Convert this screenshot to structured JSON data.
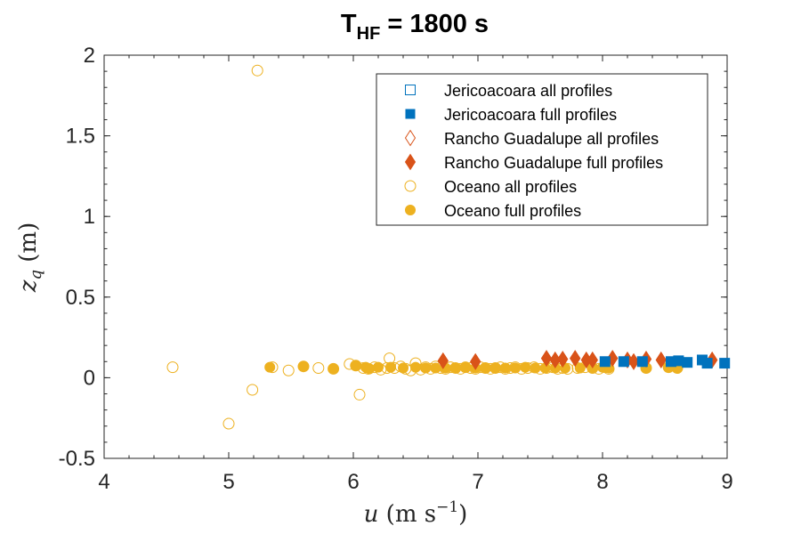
{
  "chart_data": {
    "type": "scatter",
    "title": {
      "main": "T",
      "sub": "HF",
      "rest": " = 1800 s"
    },
    "xlabel": {
      "var": "u",
      "unit_open": " (m s",
      "exp": "−1",
      "unit_close": ")"
    },
    "ylabel": {
      "var": "z",
      "sub": "q",
      "unit": " (m)"
    },
    "xlim": [
      4,
      9
    ],
    "ylim": [
      -0.5,
      2
    ],
    "xticks": [
      4,
      5,
      6,
      7,
      8,
      9
    ],
    "yticks": [
      -0.5,
      0,
      0.5,
      1,
      1.5,
      2
    ],
    "xtick_labels": [
      "4",
      "5",
      "6",
      "7",
      "8",
      "9"
    ],
    "ytick_labels": [
      "-0.5",
      "0",
      "0.5",
      "1",
      "1.5",
      "2"
    ],
    "legend_position": "top-right",
    "colors": {
      "jericoacoara": "#0072BD",
      "rancho": "#D95319",
      "oceano": "#EDB120"
    },
    "series": [
      {
        "name": "Jericoacoara all profiles",
        "marker": "square",
        "filled": false,
        "color": "#0072BD",
        "points": [
          [
            8.02,
            0.1
          ],
          [
            8.17,
            0.1
          ],
          [
            8.32,
            0.1
          ],
          [
            8.55,
            0.1
          ],
          [
            8.61,
            0.105
          ],
          [
            8.68,
            0.095
          ],
          [
            8.8,
            0.11
          ],
          [
            8.84,
            0.09
          ],
          [
            8.98,
            0.09
          ]
        ]
      },
      {
        "name": "Jericoacoara full profiles",
        "marker": "square",
        "filled": true,
        "color": "#0072BD",
        "points": [
          [
            8.02,
            0.1
          ],
          [
            8.17,
            0.1
          ],
          [
            8.32,
            0.1
          ],
          [
            8.55,
            0.1
          ],
          [
            8.61,
            0.105
          ],
          [
            8.68,
            0.095
          ],
          [
            8.8,
            0.11
          ],
          [
            8.84,
            0.09
          ],
          [
            8.98,
            0.09
          ]
        ]
      },
      {
        "name": "Rancho Guadalupe all profiles",
        "marker": "diamond",
        "filled": false,
        "color": "#D95319",
        "points": [
          [
            6.72,
            0.105
          ],
          [
            6.98,
            0.1
          ],
          [
            7.55,
            0.12
          ],
          [
            7.62,
            0.11
          ],
          [
            7.68,
            0.115
          ],
          [
            7.78,
            0.12
          ],
          [
            7.87,
            0.11
          ],
          [
            7.92,
            0.11
          ],
          [
            8.08,
            0.12
          ],
          [
            8.2,
            0.11
          ],
          [
            8.25,
            0.1
          ],
          [
            8.35,
            0.115
          ],
          [
            8.47,
            0.11
          ],
          [
            8.88,
            0.11
          ]
        ]
      },
      {
        "name": "Rancho Guadalupe full profiles",
        "marker": "diamond",
        "filled": true,
        "color": "#D95319",
        "points": [
          [
            6.72,
            0.105
          ],
          [
            6.98,
            0.1
          ],
          [
            7.55,
            0.12
          ],
          [
            7.62,
            0.11
          ],
          [
            7.68,
            0.115
          ],
          [
            7.78,
            0.12
          ],
          [
            7.87,
            0.11
          ],
          [
            7.92,
            0.11
          ],
          [
            8.08,
            0.12
          ],
          [
            8.2,
            0.11
          ],
          [
            8.25,
            0.1
          ],
          [
            8.35,
            0.115
          ],
          [
            8.47,
            0.11
          ],
          [
            8.88,
            0.11
          ]
        ]
      },
      {
        "name": "Oceano all profiles",
        "marker": "circle",
        "filled": false,
        "color": "#EDB120",
        "points": [
          [
            4.55,
            0.065
          ],
          [
            5.0,
            -0.285
          ],
          [
            5.19,
            -0.075
          ],
          [
            5.23,
            1.905
          ],
          [
            5.35,
            0.065
          ],
          [
            5.48,
            0.045
          ],
          [
            5.6,
            0.07
          ],
          [
            5.72,
            0.06
          ],
          [
            5.84,
            0.055
          ],
          [
            5.97,
            0.085
          ],
          [
            6.02,
            0.075
          ],
          [
            6.05,
            -0.105
          ],
          [
            6.08,
            0.06
          ],
          [
            6.12,
            0.055
          ],
          [
            6.17,
            0.065
          ],
          [
            6.22,
            0.05
          ],
          [
            6.27,
            0.06
          ],
          [
            6.29,
            0.12
          ],
          [
            6.33,
            0.06
          ],
          [
            6.38,
            0.07
          ],
          [
            6.42,
            0.055
          ],
          [
            6.46,
            0.045
          ],
          [
            6.5,
            0.09
          ],
          [
            6.54,
            0.05
          ],
          [
            6.58,
            0.065
          ],
          [
            6.62,
            0.055
          ],
          [
            6.66,
            0.07
          ],
          [
            6.7,
            0.06
          ],
          [
            6.74,
            0.055
          ],
          [
            6.78,
            0.065
          ],
          [
            6.82,
            0.06
          ],
          [
            6.86,
            0.055
          ],
          [
            6.9,
            0.065
          ],
          [
            6.94,
            0.06
          ],
          [
            6.98,
            0.055
          ],
          [
            7.02,
            0.065
          ],
          [
            7.06,
            0.06
          ],
          [
            7.1,
            0.055
          ],
          [
            7.14,
            0.06
          ],
          [
            7.18,
            0.065
          ],
          [
            7.22,
            0.055
          ],
          [
            7.26,
            0.06
          ],
          [
            7.3,
            0.065
          ],
          [
            7.35,
            0.055
          ],
          [
            7.4,
            0.06
          ],
          [
            7.45,
            0.065
          ],
          [
            7.5,
            0.055
          ],
          [
            7.55,
            0.06
          ],
          [
            7.6,
            0.065
          ],
          [
            7.64,
            0.055
          ],
          [
            7.68,
            0.06
          ],
          [
            7.72,
            0.055
          ],
          [
            7.8,
            0.06
          ],
          [
            7.86,
            0.065
          ],
          [
            7.92,
            0.06
          ],
          [
            7.97,
            0.055
          ],
          [
            8.02,
            0.065
          ],
          [
            8.05,
            0.055
          ],
          [
            8.35,
            0.06
          ],
          [
            8.53,
            0.065
          ],
          [
            8.6,
            0.06
          ]
        ]
      },
      {
        "name": "Oceano full profiles",
        "marker": "circle",
        "filled": true,
        "color": "#EDB120",
        "points": [
          [
            5.33,
            0.065
          ],
          [
            5.6,
            0.07
          ],
          [
            5.84,
            0.055
          ],
          [
            6.02,
            0.075
          ],
          [
            6.1,
            0.065
          ],
          [
            6.13,
            0.055
          ],
          [
            6.2,
            0.065
          ],
          [
            6.3,
            0.065
          ],
          [
            6.4,
            0.06
          ],
          [
            6.5,
            0.065
          ],
          [
            6.58,
            0.06
          ],
          [
            6.66,
            0.06
          ],
          [
            6.74,
            0.06
          ],
          [
            6.82,
            0.06
          ],
          [
            6.9,
            0.065
          ],
          [
            6.98,
            0.06
          ],
          [
            7.06,
            0.06
          ],
          [
            7.14,
            0.06
          ],
          [
            7.22,
            0.06
          ],
          [
            7.3,
            0.06
          ],
          [
            7.38,
            0.065
          ],
          [
            7.46,
            0.06
          ],
          [
            7.54,
            0.06
          ],
          [
            7.62,
            0.06
          ],
          [
            7.7,
            0.06
          ],
          [
            7.82,
            0.06
          ],
          [
            7.92,
            0.06
          ],
          [
            8.0,
            0.065
          ],
          [
            8.05,
            0.06
          ],
          [
            8.35,
            0.06
          ],
          [
            8.53,
            0.065
          ],
          [
            8.6,
            0.06
          ]
        ]
      }
    ]
  }
}
